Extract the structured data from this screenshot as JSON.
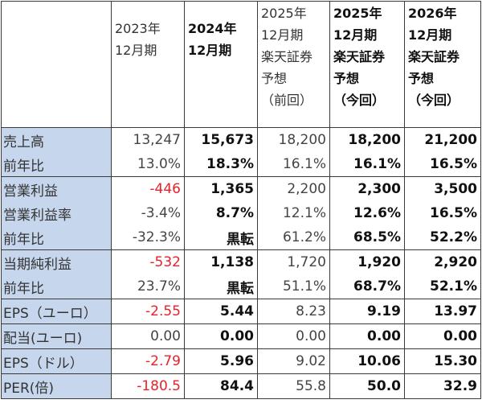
{
  "headers": [
    {
      "lines": [
        "2023年",
        "12月期"
      ],
      "bold": false
    },
    {
      "lines": [
        "2024年",
        "12月期"
      ],
      "bold": true
    },
    {
      "lines": [
        "2025年",
        "12月期",
        "楽天証券",
        "予想",
        "（前回）"
      ],
      "bold": false
    },
    {
      "lines": [
        "2025年",
        "12月期",
        "楽天証券",
        "予想",
        "（今回）"
      ],
      "bold": true
    },
    {
      "lines": [
        "2026年",
        "12月期",
        "楽天証券",
        "予想",
        "（今回）"
      ],
      "bold": true
    }
  ],
  "rows": [
    {
      "label": "売上高",
      "values": [
        "13,247",
        "15,673",
        "18,200",
        "18,200",
        "21,200"
      ],
      "neg": [
        false,
        false,
        false,
        false,
        false
      ],
      "group_start": true
    },
    {
      "label": "前年比",
      "values": [
        "13.0%",
        "18.3%",
        "16.1%",
        "16.1%",
        "16.5%"
      ],
      "neg": [
        false,
        false,
        false,
        false,
        false
      ],
      "group_start": false
    },
    {
      "label": "営業利益",
      "values": [
        "-446",
        "1,365",
        "2,200",
        "2,300",
        "3,500"
      ],
      "neg": [
        true,
        false,
        false,
        false,
        false
      ],
      "group_start": true
    },
    {
      "label": "営業利益率",
      "values": [
        "-3.4%",
        "8.7%",
        "12.1%",
        "12.6%",
        "16.5%"
      ],
      "neg": [
        false,
        false,
        false,
        false,
        false
      ],
      "group_start": false
    },
    {
      "label": "前年比",
      "values": [
        "-32.3%",
        "黒転",
        "61.2%",
        "68.5%",
        "52.2%"
      ],
      "neg": [
        false,
        false,
        false,
        false,
        false
      ],
      "group_start": false
    },
    {
      "label": "当期純利益",
      "values": [
        "-532",
        "1,138",
        "1,720",
        "1,920",
        "2,920"
      ],
      "neg": [
        true,
        false,
        false,
        false,
        false
      ],
      "group_start": true
    },
    {
      "label": "前年比",
      "values": [
        "23.7%",
        "黒転",
        "51.1%",
        "68.7%",
        "52.1%"
      ],
      "neg": [
        false,
        false,
        false,
        false,
        false
      ],
      "group_start": false
    },
    {
      "label": "EPS（ユーロ）",
      "values": [
        "-2.55",
        "5.44",
        "8.23",
        "9.19",
        "13.97"
      ],
      "neg": [
        true,
        false,
        false,
        false,
        false
      ],
      "group_start": true
    },
    {
      "label": "配当(ユーロ)",
      "values": [
        "0.00",
        "0.00",
        "0.00",
        "0.00",
        "0.00"
      ],
      "neg": [
        false,
        false,
        false,
        false,
        false
      ],
      "group_start": true
    },
    {
      "label": "EPS（ドル）",
      "values": [
        "-2.79",
        "5.96",
        "9.02",
        "10.06",
        "15.30"
      ],
      "neg": [
        true,
        false,
        false,
        false,
        false
      ],
      "group_start": true
    },
    {
      "label": "PER(倍)",
      "values": [
        "-180.5",
        "84.4",
        "55.8",
        "50.0",
        "32.9"
      ],
      "neg": [
        true,
        false,
        false,
        false,
        false
      ],
      "group_start": true
    }
  ],
  "column_bold": [
    false,
    true,
    false,
    true,
    true
  ],
  "colors": {
    "label_bg": "#c6d6ed",
    "negative": "#e8212b",
    "border": "#3a3a3a"
  }
}
